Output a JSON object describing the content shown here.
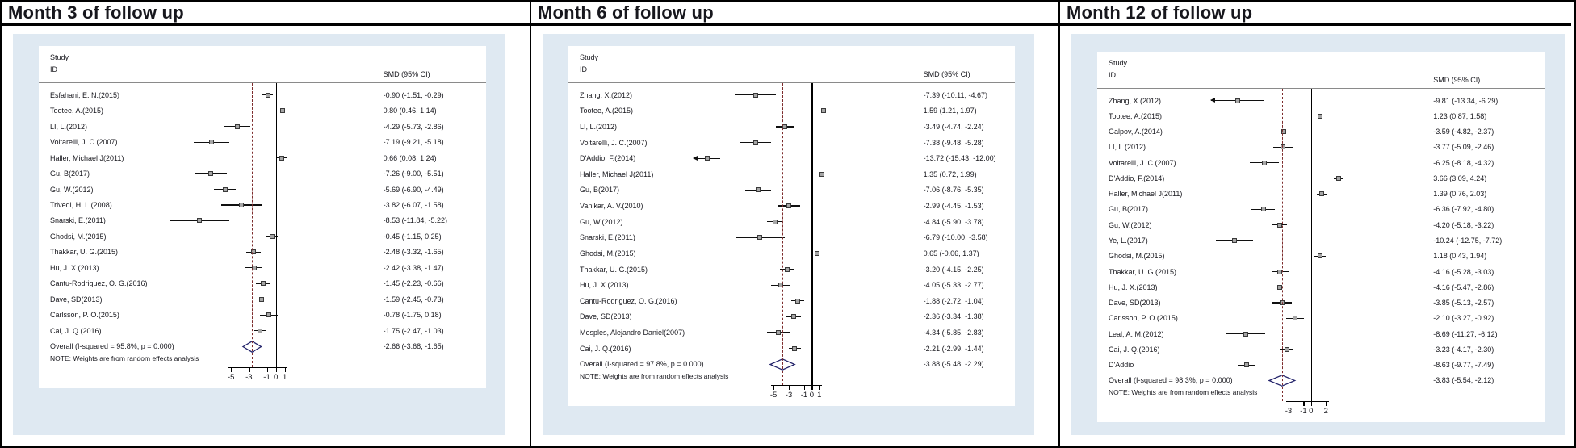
{
  "chart_data": [
    {
      "type": "forest",
      "title": "Month 3 of follow up",
      "col_header_line1": "Study",
      "col_header_line2": "ID",
      "smd_header": "SMD (95% CI)",
      "note": "NOTE: Weights are from random effects analysis",
      "axis_ticks": [
        -5,
        -3,
        -1,
        0,
        1
      ],
      "xlim": [
        -12.4,
        2.3
      ],
      "layout": {
        "zero_frac": 0.53,
        "unit_frac": 0.02,
        "smd_col_frac": 0.77
      },
      "studies": [
        {
          "id": "Esfahani, E. N.(2015)",
          "smd": -0.9,
          "lo": -1.51,
          "hi": -0.29,
          "label": "-0.90 (-1.51, -0.29)"
        },
        {
          "id": "Tootee, A.(2015)",
          "smd": 0.8,
          "lo": 0.46,
          "hi": 1.14,
          "label": "0.80 (0.46, 1.14)"
        },
        {
          "id": "LI, L.(2012)",
          "smd": -4.29,
          "lo": -5.73,
          "hi": -2.86,
          "label": "-4.29 (-5.73, -2.86)"
        },
        {
          "id": "Voltarelli, J. C.(2007)",
          "smd": -7.19,
          "lo": -9.21,
          "hi": -5.18,
          "label": "-7.19 (-9.21, -5.18)"
        },
        {
          "id": "Haller, Michael J(2011)",
          "smd": 0.66,
          "lo": 0.08,
          "hi": 1.24,
          "label": "0.66 (0.08, 1.24)"
        },
        {
          "id": "Gu, B(2017)",
          "smd": -7.26,
          "lo": -9.0,
          "hi": -5.51,
          "label": "-7.26 (-9.00, -5.51)"
        },
        {
          "id": "Gu, W.(2012)",
          "smd": -5.69,
          "lo": -6.9,
          "hi": -4.49,
          "label": "-5.69 (-6.90, -4.49)"
        },
        {
          "id": "Trivedi, H. L.(2008)",
          "smd": -3.82,
          "lo": -6.07,
          "hi": -1.58,
          "label": "-3.82 (-6.07, -1.58)"
        },
        {
          "id": "Snarski, E.(2011)",
          "smd": -8.53,
          "lo": -11.84,
          "hi": -5.22,
          "label": "-8.53 (-11.84, -5.22)"
        },
        {
          "id": "Ghodsi, M.(2015)",
          "smd": -0.45,
          "lo": -1.15,
          "hi": 0.25,
          "label": "-0.45 (-1.15, 0.25)"
        },
        {
          "id": "Thakkar, U. G.(2015)",
          "smd": -2.48,
          "lo": -3.32,
          "hi": -1.65,
          "label": "-2.48 (-3.32, -1.65)"
        },
        {
          "id": "Hu, J. X.(2013)",
          "smd": -2.42,
          "lo": -3.38,
          "hi": -1.47,
          "label": "-2.42 (-3.38, -1.47)"
        },
        {
          "id": "Cantu-Rodriguez, O. G.(2016)",
          "smd": -1.45,
          "lo": -2.23,
          "hi": -0.66,
          "label": "-1.45 (-2.23, -0.66)"
        },
        {
          "id": "Dave, SD(2013)",
          "smd": -1.59,
          "lo": -2.45,
          "hi": -0.73,
          "label": "-1.59 (-2.45, -0.73)"
        },
        {
          "id": "Carlsson, P. O.(2015)",
          "smd": -0.78,
          "lo": -1.75,
          "hi": 0.18,
          "label": "-0.78 (-1.75, 0.18)"
        },
        {
          "id": "Cai, J. Q.(2016)",
          "smd": -1.75,
          "lo": -2.47,
          "hi": -1.03,
          "label": "-1.75 (-2.47, -1.03)"
        }
      ],
      "overall": {
        "id": "Overall  (I-squared = 95.8%, p = 0.000)",
        "smd": -2.66,
        "lo": -3.68,
        "hi": -1.65,
        "label": "-2.66 (-3.68, -1.65)"
      }
    },
    {
      "type": "forest",
      "title": "Month 6 of follow up",
      "col_header_line1": "Study",
      "col_header_line2": "ID",
      "smd_header": "SMD (95% CI)",
      "note": "NOTE: Weights are from random effects analysis",
      "axis_ticks": [
        -5,
        -3,
        -1,
        0,
        1
      ],
      "xlim": [
        -15.5,
        2.3
      ],
      "layout": {
        "zero_frac": 0.545,
        "unit_frac": 0.0171,
        "smd_col_frac": 0.795
      },
      "studies": [
        {
          "id": "Zhang, X.(2012)",
          "smd": -7.39,
          "lo": -10.11,
          "hi": -4.67,
          "label": "-7.39 (-10.11, -4.67)"
        },
        {
          "id": "Tootee, A.(2015)",
          "smd": 1.59,
          "lo": 1.21,
          "hi": 1.97,
          "label": "1.59 (1.21, 1.97)"
        },
        {
          "id": "LI, L.(2012)",
          "smd": -3.49,
          "lo": -4.74,
          "hi": -2.24,
          "label": "-3.49 (-4.74, -2.24)"
        },
        {
          "id": "Voltarelli, J. C.(2007)",
          "smd": -7.38,
          "lo": -9.48,
          "hi": -5.28,
          "label": "-7.38 (-9.48, -5.28)"
        },
        {
          "id": "D'Addio, F.(2014)",
          "smd": -13.72,
          "lo": -15.43,
          "hi": -12.0,
          "label": "-13.72 (-15.43, -12.00)",
          "arrow": "left"
        },
        {
          "id": "Haller, Michael J(2011)",
          "smd": 1.35,
          "lo": 0.72,
          "hi": 1.99,
          "label": "1.35 (0.72, 1.99)"
        },
        {
          "id": "Gu, B(2017)",
          "smd": -7.06,
          "lo": -8.76,
          "hi": -5.35,
          "label": "-7.06 (-8.76, -5.35)"
        },
        {
          "id": "Vanikar, A. V.(2010)",
          "smd": -2.99,
          "lo": -4.45,
          "hi": -1.53,
          "label": "-2.99 (-4.45, -1.53)"
        },
        {
          "id": "Gu, W.(2012)",
          "smd": -4.84,
          "lo": -5.9,
          "hi": -3.78,
          "label": "-4.84 (-5.90, -3.78)"
        },
        {
          "id": "Snarski, E.(2011)",
          "smd": -6.79,
          "lo": -10.0,
          "hi": -3.58,
          "label": "-6.79 (-10.00, -3.58)"
        },
        {
          "id": "Ghodsi, M.(2015)",
          "smd": 0.65,
          "lo": -0.06,
          "hi": 1.37,
          "label": "0.65 (-0.06, 1.37)"
        },
        {
          "id": "Thakkar, U. G.(2015)",
          "smd": -3.2,
          "lo": -4.15,
          "hi": -2.25,
          "label": "-3.20 (-4.15, -2.25)"
        },
        {
          "id": "Hu, J. X.(2013)",
          "smd": -4.05,
          "lo": -5.33,
          "hi": -2.77,
          "label": "-4.05 (-5.33, -2.77)"
        },
        {
          "id": "Cantu-Rodriguez, O. G.(2016)",
          "smd": -1.88,
          "lo": -2.72,
          "hi": -1.04,
          "label": "-1.88 (-2.72, -1.04)"
        },
        {
          "id": "Dave, SD(2013)",
          "smd": -2.36,
          "lo": -3.34,
          "hi": -1.38,
          "label": "-2.36 (-3.34, -1.38)"
        },
        {
          "id": "Mesples, Alejandro Daniel(2007)",
          "smd": -4.34,
          "lo": -5.85,
          "hi": -2.83,
          "label": "-4.34 (-5.85, -2.83)"
        },
        {
          "id": "Cai, J. Q.(2016)",
          "smd": -2.21,
          "lo": -2.99,
          "hi": -1.44,
          "label": "-2.21 (-2.99, -1.44)"
        }
      ],
      "overall": {
        "id": "Overall  (I-squared = 97.8%, p = 0.000)",
        "smd": -3.88,
        "lo": -5.48,
        "hi": -2.29,
        "label": "-3.88 (-5.48, -2.29)"
      }
    },
    {
      "type": "forest",
      "title": "Month 12 of follow up",
      "col_header_line1": "Study",
      "col_header_line2": "ID",
      "smd_header": "SMD (95% CI)",
      "note": "NOTE: Weights are from random effects analysis",
      "axis_ticks": [
        -3,
        -1,
        0,
        2
      ],
      "xlim": [
        -13.4,
        4.3
      ],
      "layout": {
        "zero_frac": 0.477,
        "unit_frac": 0.0167,
        "smd_col_frac": 0.75
      },
      "studies": [
        {
          "id": "Zhang, X.(2012)",
          "smd": -9.81,
          "lo": -13.34,
          "hi": -6.29,
          "label": "-9.81 (-13.34, -6.29)",
          "arrow": "left"
        },
        {
          "id": "Tootee, A.(2015)",
          "smd": 1.23,
          "lo": 0.87,
          "hi": 1.58,
          "label": "1.23 (0.87, 1.58)"
        },
        {
          "id": "Galpov, A.(2014)",
          "smd": -3.59,
          "lo": -4.82,
          "hi": -2.37,
          "label": "-3.59 (-4.82, -2.37)"
        },
        {
          "id": "LI, L.(2012)",
          "smd": -3.77,
          "lo": -5.09,
          "hi": -2.46,
          "label": "-3.77 (-5.09, -2.46)"
        },
        {
          "id": "Voltarelli, J. C.(2007)",
          "smd": -6.25,
          "lo": -8.18,
          "hi": -4.32,
          "label": "-6.25 (-8.18, -4.32)"
        },
        {
          "id": "D'Addio, F.(2014)",
          "smd": 3.66,
          "lo": 3.09,
          "hi": 4.24,
          "label": "3.66 (3.09, 4.24)"
        },
        {
          "id": "Haller, Michael J(2011)",
          "smd": 1.39,
          "lo": 0.76,
          "hi": 2.03,
          "label": "1.39 (0.76, 2.03)"
        },
        {
          "id": "Gu, B(2017)",
          "smd": -6.36,
          "lo": -7.92,
          "hi": -4.8,
          "label": "-6.36 (-7.92, -4.80)"
        },
        {
          "id": "Gu, W.(2012)",
          "smd": -4.2,
          "lo": -5.18,
          "hi": -3.22,
          "label": "-4.20 (-5.18, -3.22)"
        },
        {
          "id": "Ye, L.(2017)",
          "smd": -10.24,
          "lo": -12.75,
          "hi": -7.72,
          "label": "-10.24 (-12.75, -7.72)"
        },
        {
          "id": "Ghodsi, M.(2015)",
          "smd": 1.18,
          "lo": 0.43,
          "hi": 1.94,
          "label": "1.18 (0.43, 1.94)"
        },
        {
          "id": "Thakkar, U. G.(2015)",
          "smd": -4.16,
          "lo": -5.28,
          "hi": -3.03,
          "label": "-4.16 (-5.28, -3.03)"
        },
        {
          "id": "Hu, J. X.(2013)",
          "smd": -4.16,
          "lo": -5.47,
          "hi": -2.86,
          "label": "-4.16 (-5.47, -2.86)"
        },
        {
          "id": "Dave, SD(2013)",
          "smd": -3.85,
          "lo": -5.13,
          "hi": -2.57,
          "label": "-3.85 (-5.13, -2.57)"
        },
        {
          "id": "Carlsson, P. O.(2015)",
          "smd": -2.1,
          "lo": -3.27,
          "hi": -0.92,
          "label": "-2.10 (-3.27, -0.92)"
        },
        {
          "id": "Leal, A. M.(2012)",
          "smd": -8.69,
          "lo": -11.27,
          "hi": -6.12,
          "label": "-8.69 (-11.27, -6.12)"
        },
        {
          "id": "Cai, J. Q.(2016)",
          "smd": -3.23,
          "lo": -4.17,
          "hi": -2.3,
          "label": "-3.23 (-4.17, -2.30)"
        },
        {
          "id": "D'Addio",
          "smd": -8.63,
          "lo": -9.77,
          "hi": -7.49,
          "label": "-8.63 (-9.77, -7.49)"
        }
      ],
      "overall": {
        "id": "Overall  (I-squared = 98.3%, p = 0.000)",
        "smd": -3.83,
        "lo": -5.54,
        "hi": -2.12,
        "label": "-3.83 (-5.54, -2.12)"
      }
    }
  ],
  "colors": {
    "panel_background": "#dfe9f2",
    "zero_line": "#000000",
    "overall_dashed_line": "#7d2c2c",
    "diamond_outline": "#24246b",
    "marker_fill": "#a6a6a6",
    "text": "#17171d"
  }
}
